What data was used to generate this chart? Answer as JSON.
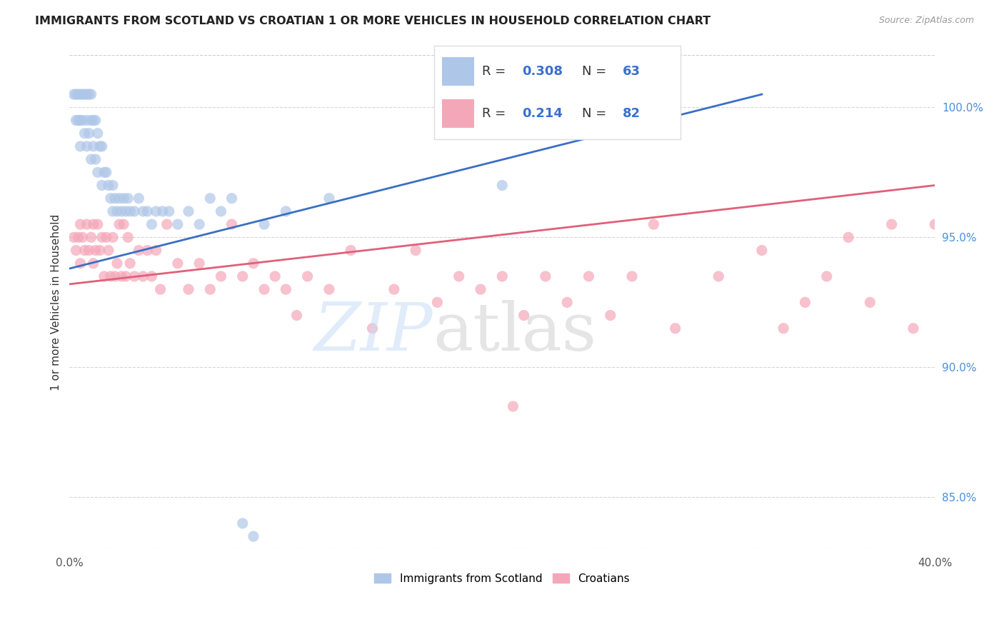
{
  "title": "IMMIGRANTS FROM SCOTLAND VS CROATIAN 1 OR MORE VEHICLES IN HOUSEHOLD CORRELATION CHART",
  "source": "Source: ZipAtlas.com",
  "ylabel": "1 or more Vehicles in Household",
  "scotland_color": "#aec6e8",
  "croatian_color": "#f4a7b9",
  "scotland_line_color": "#3a6fc4",
  "croatian_line_color": "#e0607a",
  "xlim": [
    0.0,
    40.0
  ],
  "ylim": [
    83.0,
    102.0
  ],
  "yticks": [
    85.0,
    90.0,
    95.0,
    100.0
  ],
  "xticks": [
    0,
    10,
    20,
    30,
    40
  ],
  "scotland_R": 0.308,
  "scotland_N": 63,
  "croatian_R": 0.214,
  "croatian_N": 82,
  "scot_line_x0": 0.0,
  "scot_line_y0": 93.8,
  "scot_line_x1": 32.0,
  "scot_line_y1": 100.5,
  "cro_line_x0": 0.0,
  "cro_line_y0": 93.2,
  "cro_line_x1": 40.0,
  "cro_line_y1": 97.0
}
